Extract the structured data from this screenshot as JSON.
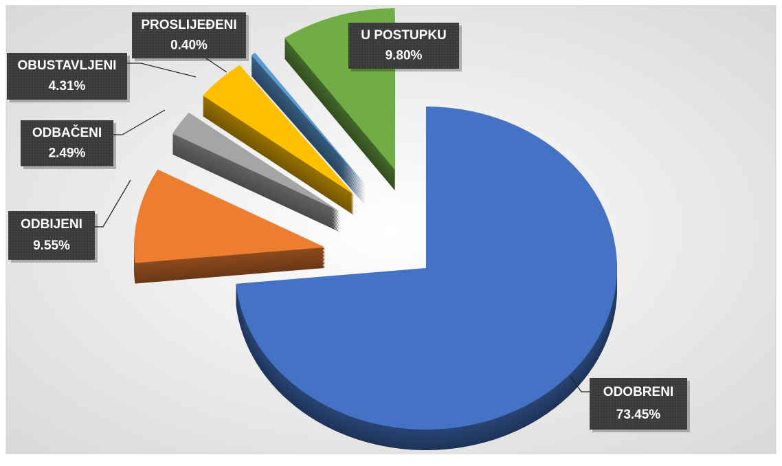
{
  "chart_data": {
    "type": "pie",
    "categories": [
      "ODOBRENI",
      "ODBIJENI",
      "ODBAČENI",
      "OBUSTAVLJENI",
      "PROSLIJEĐENI",
      "U POSTUPKU"
    ],
    "values": [
      73.45,
      9.55,
      2.49,
      4.31,
      0.4,
      9.8
    ],
    "value_labels": [
      "73.45%",
      "9.55%",
      "2.49%",
      "4.31%",
      "0.40%",
      "9.80%"
    ],
    "colors": [
      "#4472c4",
      "#ed7d31",
      "#a5a5a5",
      "#ffc000",
      "#5b9bd5",
      "#70ad47"
    ]
  }
}
